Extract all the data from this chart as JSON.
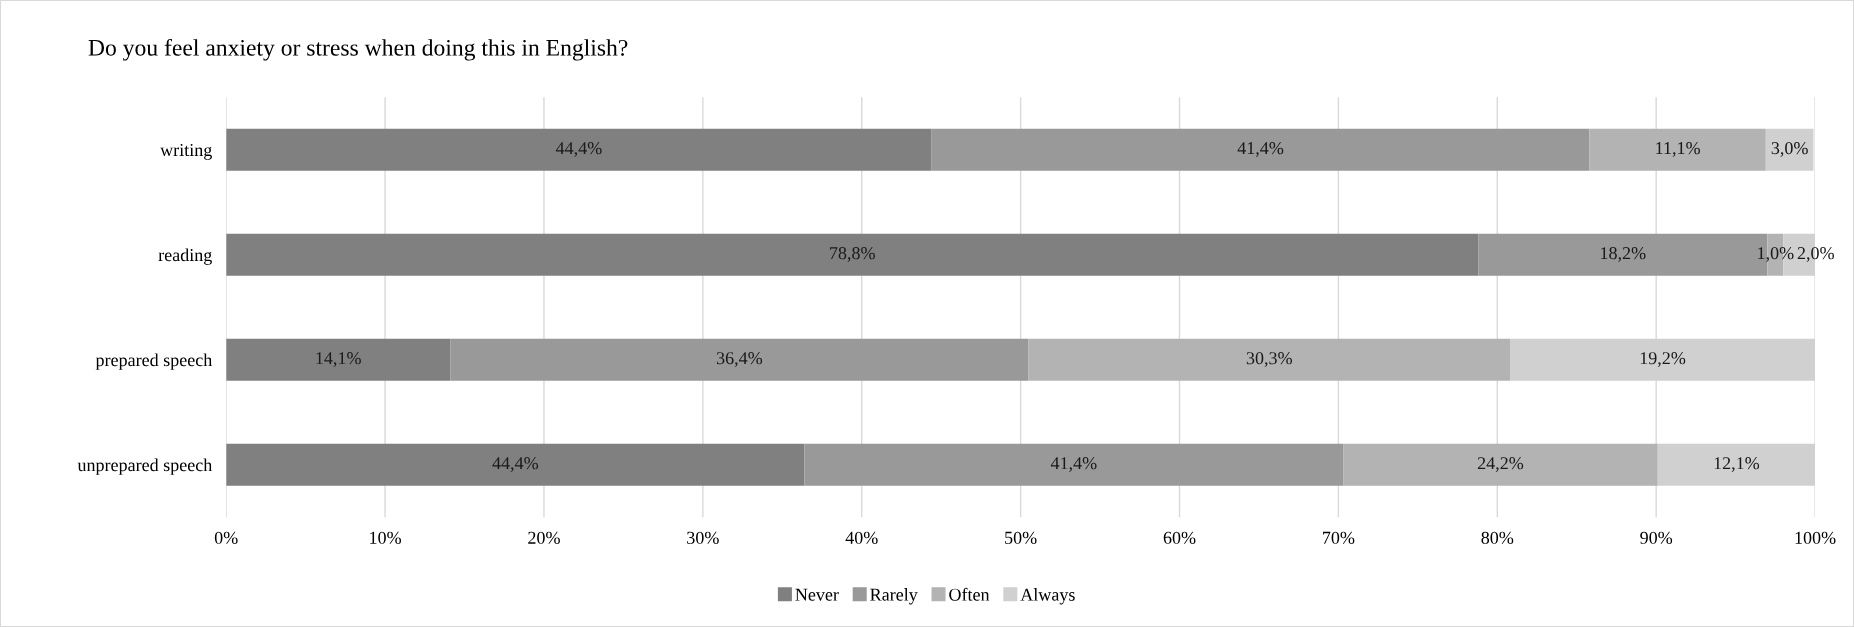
{
  "chart_data": {
    "type": "bar",
    "orientation": "horizontal",
    "stacked": true,
    "title": "Do you feel anxiety or stress when doing this in English?",
    "categories": [
      "writing",
      "reading",
      "prepared speech",
      "unprepared speech"
    ],
    "series": [
      {
        "name": "Never",
        "color": "#808080",
        "values": [
          44.4,
          78.8,
          14.1,
          36.4
        ],
        "value_labels": [
          "44,4%",
          "78,8%",
          "14,1%",
          null
        ]
      },
      {
        "name": "Rarely",
        "color": "#999999",
        "values": [
          41.4,
          18.2,
          36.4,
          33.9
        ],
        "value_labels": [
          "41,4%",
          "18,2%",
          "36,4%",
          null
        ]
      },
      {
        "name": "Often",
        "color": "#b3b3b3",
        "values": [
          11.1,
          1.0,
          30.3,
          19.8
        ],
        "value_labels": [
          "11,1%",
          "1,0%",
          "30,3%",
          null
        ]
      },
      {
        "name": "Always",
        "color": "#d0d0d0",
        "values": [
          3.0,
          2.0,
          19.2,
          9.9
        ],
        "value_labels": [
          "3,0%",
          "2,0%",
          "19,2%",
          null
        ]
      }
    ],
    "annotations": [
      "44,4%",
      "41,4%",
      "24,2%",
      "12,1%"
    ],
    "xlim": [
      0,
      100
    ],
    "xticks": [
      {
        "value": 0,
        "label": "0%"
      },
      {
        "value": 10,
        "label": "10%"
      },
      {
        "value": 20,
        "label": "20%"
      },
      {
        "value": 30,
        "label": "30%"
      },
      {
        "value": 40,
        "label": "40%"
      },
      {
        "value": 50,
        "label": "50%"
      },
      {
        "value": 60,
        "label": "60%"
      },
      {
        "value": 70,
        "label": "70%"
      },
      {
        "value": 80,
        "label": "80%"
      },
      {
        "value": 90,
        "label": "90%"
      },
      {
        "value": 100,
        "label": "100%"
      }
    ],
    "grid": "x",
    "legend": "bottom"
  }
}
